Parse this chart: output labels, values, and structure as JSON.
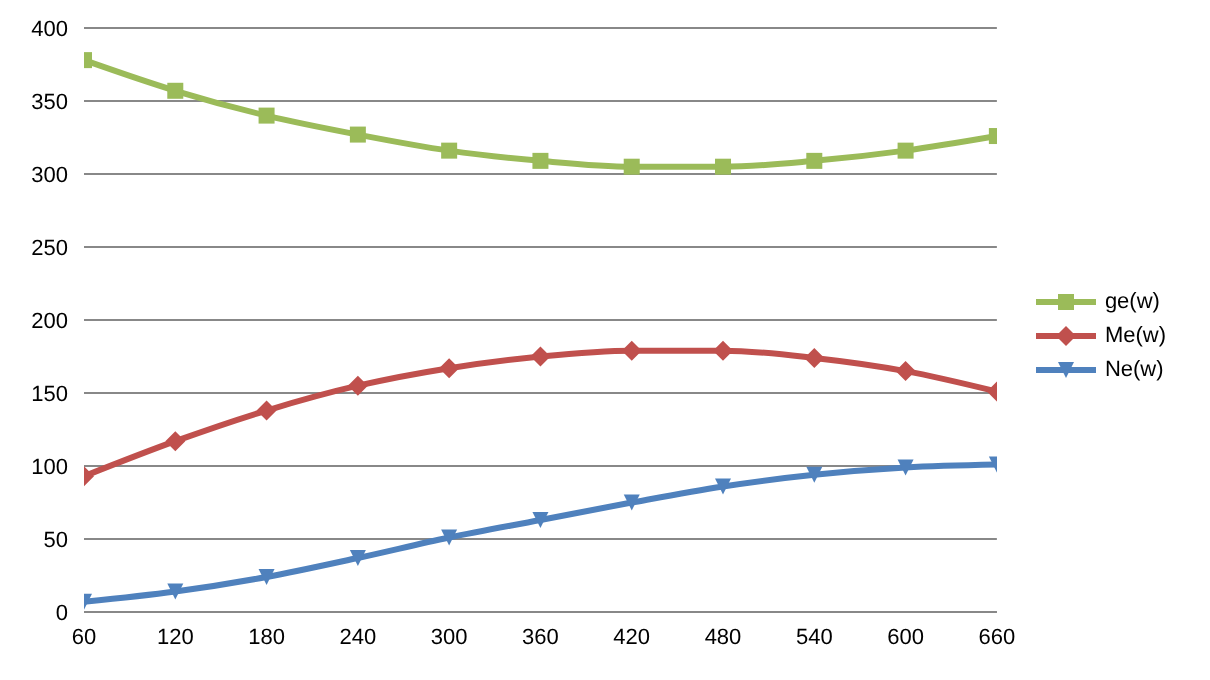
{
  "chart_data": {
    "type": "line",
    "x": [
      60,
      120,
      180,
      240,
      300,
      360,
      420,
      480,
      540,
      600,
      660
    ],
    "series": [
      {
        "name": "ge(w)",
        "color": "#9bbb59",
        "marker": "square",
        "values": [
          378,
          357,
          340,
          327,
          316,
          309,
          305,
          305,
          309,
          316,
          326
        ]
      },
      {
        "name": "Me(w)",
        "color": "#c0504d",
        "marker": "diamond",
        "values": [
          93,
          117,
          138,
          155,
          167,
          175,
          179,
          179,
          174,
          165,
          151
        ]
      },
      {
        "name": "Ne(w)",
        "color": "#4f81bd",
        "marker": "triangle",
        "values": [
          7,
          14,
          24,
          37,
          51,
          63,
          75,
          86,
          94,
          99,
          101
        ]
      }
    ],
    "xlim": [
      60,
      660
    ],
    "xticks": [
      60,
      120,
      180,
      240,
      300,
      360,
      420,
      480,
      540,
      600,
      660
    ],
    "ylim": [
      0,
      400
    ],
    "yticks": [
      0,
      50,
      100,
      150,
      200,
      250,
      300,
      350,
      400
    ],
    "grid": "y",
    "legend": "right",
    "line_style": "solid"
  }
}
